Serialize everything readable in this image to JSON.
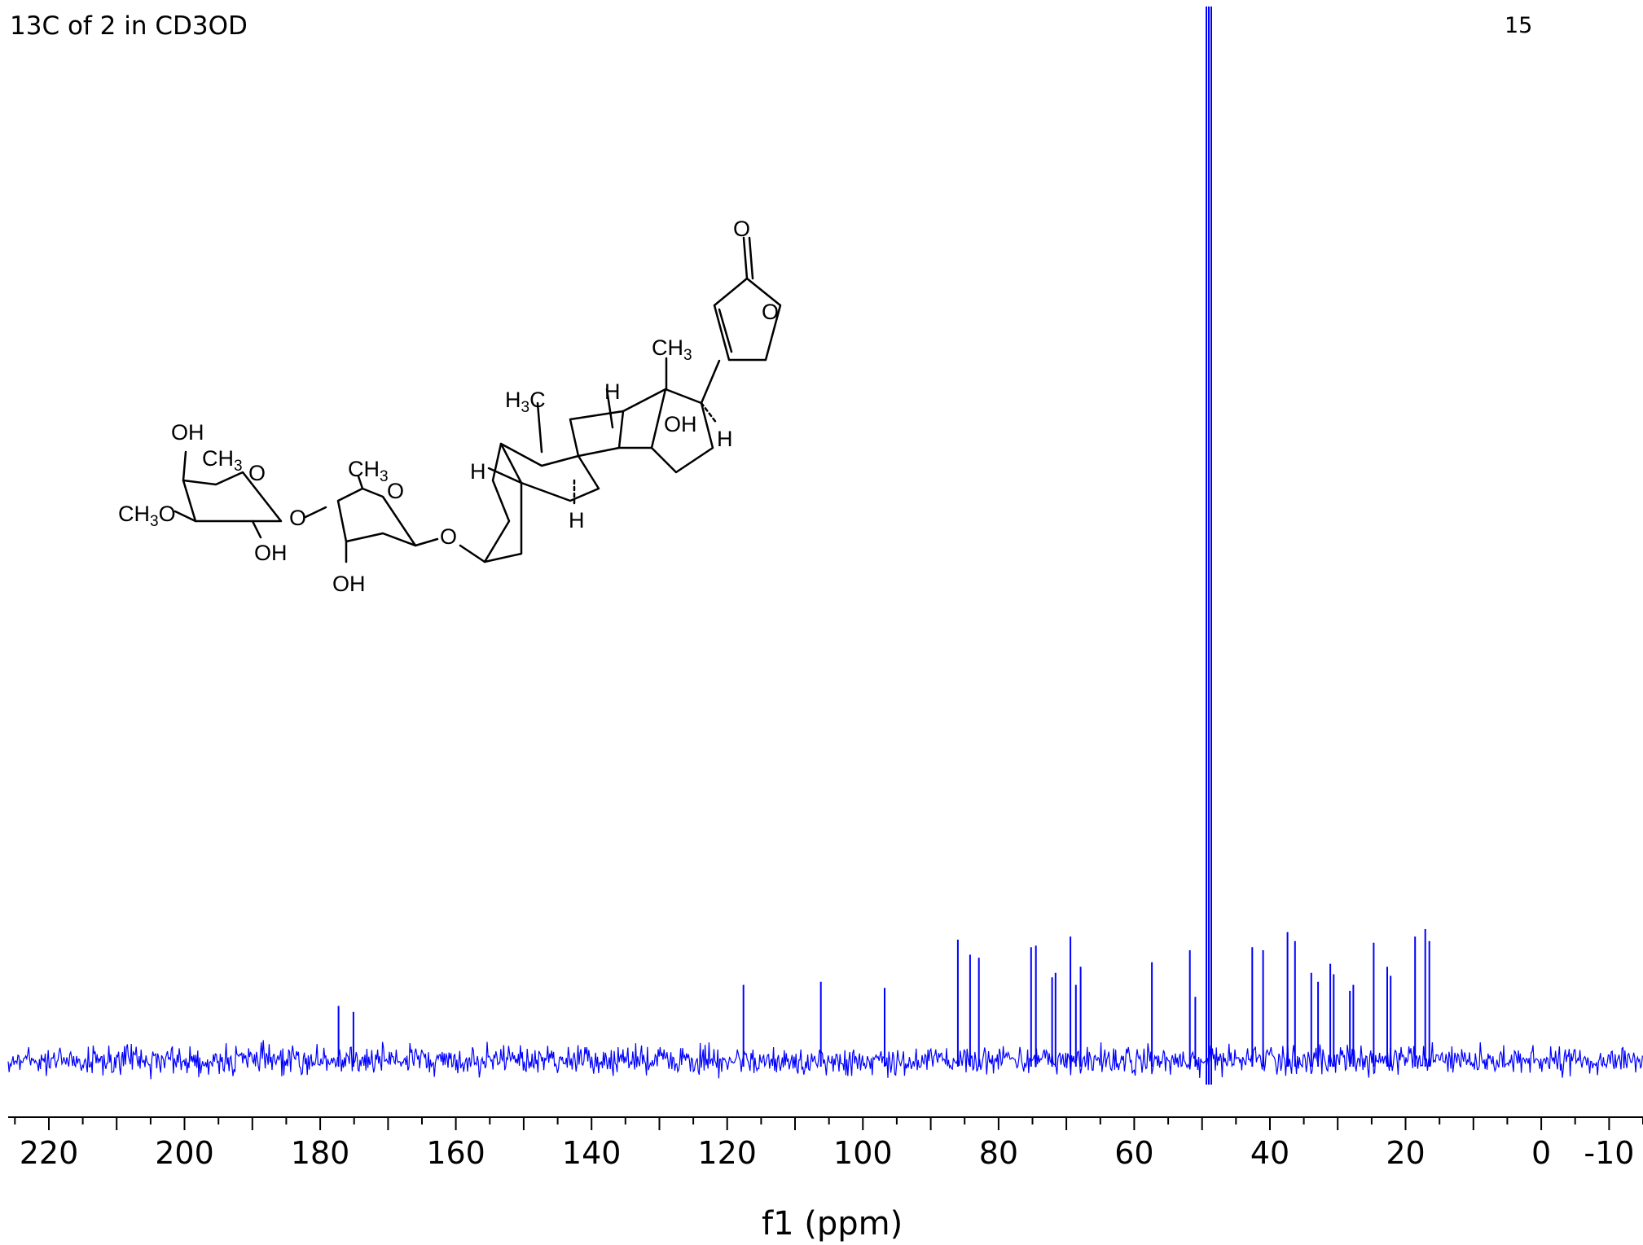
{
  "chart_data": {
    "type": "line",
    "title": "13C of 2 in CD3OD",
    "page_label": "15",
    "xlabel": "f1 (ppm)",
    "xlim": [
      226,
      -15
    ],
    "x_reversed": true,
    "xticks_major": [
      220,
      200,
      180,
      160,
      140,
      120,
      100,
      80,
      60,
      40,
      20,
      0,
      -10
    ],
    "series_color": "#0000ff",
    "solvent_peak": {
      "label": "CD3OD",
      "x": 49.0,
      "clipped": true
    },
    "peaks": [
      {
        "x": 177.3,
        "height": 0.36
      },
      {
        "x": 175.1,
        "height": 0.32
      },
      {
        "x": 117.6,
        "height": 0.5
      },
      {
        "x": 106.2,
        "height": 0.52
      },
      {
        "x": 96.8,
        "height": 0.48
      },
      {
        "x": 86.0,
        "height": 0.8
      },
      {
        "x": 84.2,
        "height": 0.7
      },
      {
        "x": 82.9,
        "height": 0.68
      },
      {
        "x": 75.2,
        "height": 0.75
      },
      {
        "x": 74.5,
        "height": 0.76
      },
      {
        "x": 72.1,
        "height": 0.55
      },
      {
        "x": 71.6,
        "height": 0.58
      },
      {
        "x": 69.4,
        "height": 0.82
      },
      {
        "x": 68.6,
        "height": 0.5
      },
      {
        "x": 67.9,
        "height": 0.62
      },
      {
        "x": 57.4,
        "height": 0.65
      },
      {
        "x": 51.8,
        "height": 0.73
      },
      {
        "x": 51.0,
        "height": 0.42
      },
      {
        "x": 42.6,
        "height": 0.75
      },
      {
        "x": 41.0,
        "height": 0.73
      },
      {
        "x": 37.4,
        "height": 0.85
      },
      {
        "x": 36.3,
        "height": 0.79
      },
      {
        "x": 33.9,
        "height": 0.58
      },
      {
        "x": 32.9,
        "height": 0.52
      },
      {
        "x": 31.1,
        "height": 0.64
      },
      {
        "x": 30.6,
        "height": 0.57
      },
      {
        "x": 28.2,
        "height": 0.46
      },
      {
        "x": 27.7,
        "height": 0.5
      },
      {
        "x": 24.7,
        "height": 0.78
      },
      {
        "x": 22.7,
        "height": 0.62
      },
      {
        "x": 22.2,
        "height": 0.56
      },
      {
        "x": 18.6,
        "height": 0.82
      },
      {
        "x": 17.1,
        "height": 0.87
      },
      {
        "x": 16.5,
        "height": 0.79
      }
    ]
  },
  "structure_labels": {
    "carbonyl_o": "O",
    "lactone_o": "O",
    "ch3_top": "CH",
    "ch3_top_sub": "3",
    "h3c_mid": "H",
    "h3c_mid_sub": "3",
    "h3c_mid_c": "C",
    "h_a": "H",
    "h_b": "H",
    "h_c": "H",
    "h_d": "H",
    "oh_ring": "OH",
    "oh_sugar1_top": "OH",
    "ch3_sugar1": "CH",
    "ch3_sugar1_sub": "3",
    "ring_o_sugar1": "O",
    "och3_ch3": "CH",
    "och3_sub": "3",
    "och3_o": "O",
    "oh_sugar1_bottom": "OH",
    "link_o1": "O",
    "ch3_sugar2": "CH",
    "ch3_sugar2_sub": "3",
    "ring_o_sugar2": "O",
    "oh_sugar2": "OH",
    "link_o2": "O"
  }
}
